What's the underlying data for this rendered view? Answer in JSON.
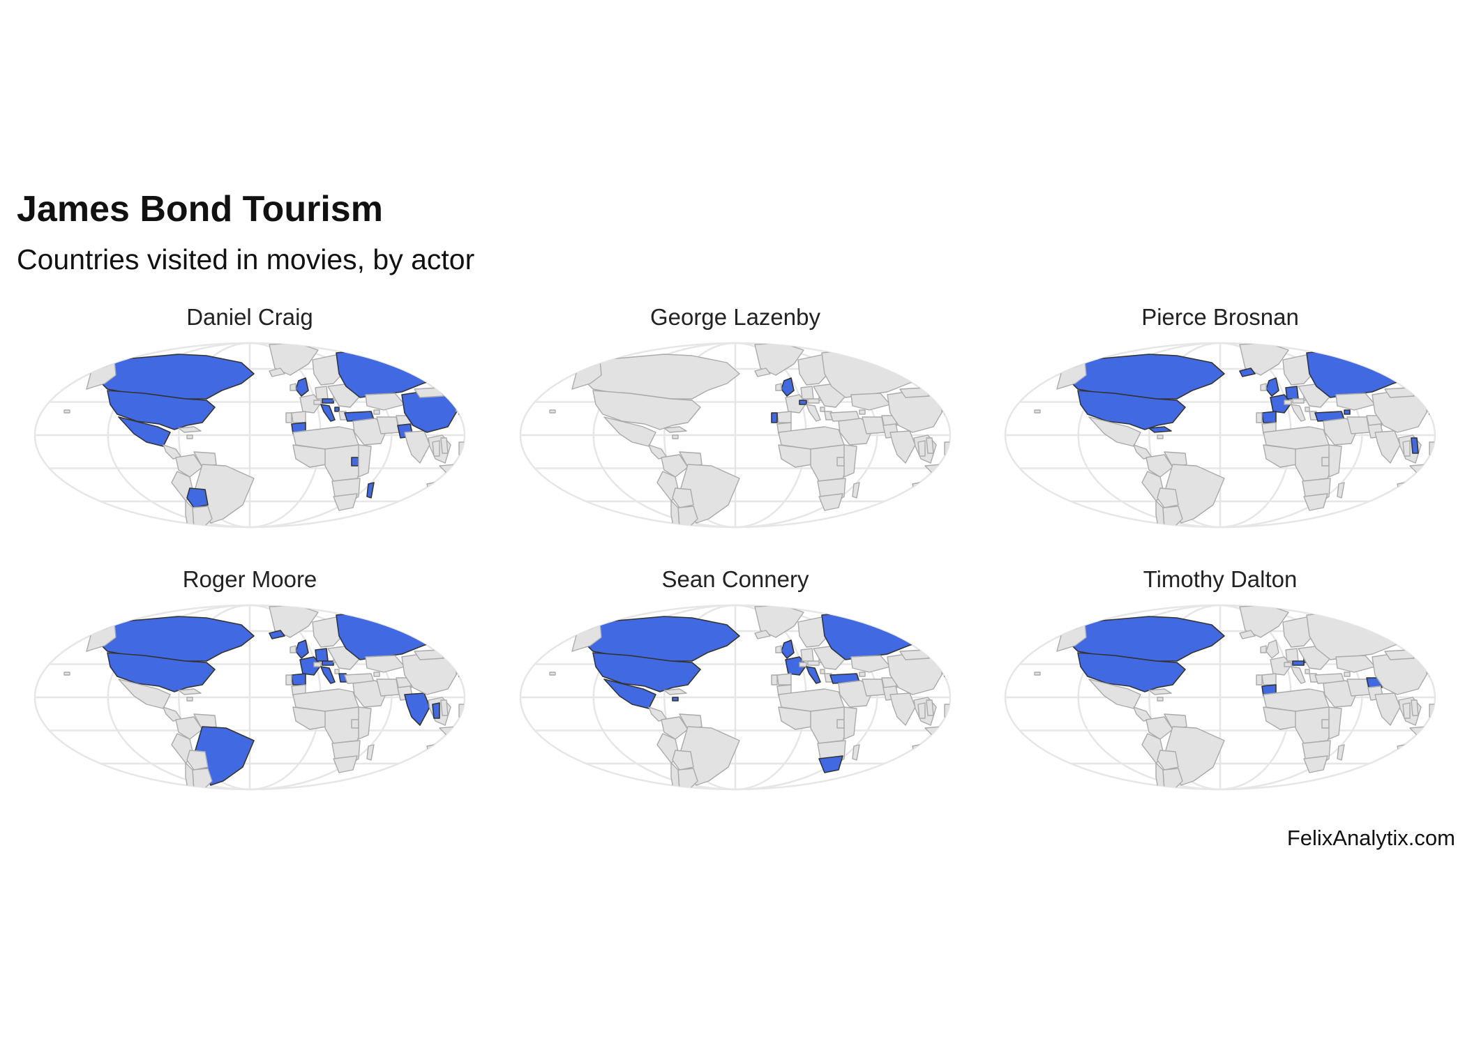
{
  "title": "James Bond Tourism",
  "subtitle": "Countries visited in movies, by actor",
  "credit": "FelixAnalytix.com",
  "colors": {
    "visited": "#4169e1",
    "not_visited": "#e2e2e2",
    "border": "#aaaaaa",
    "visited_border": "#333333",
    "graticule": "#e6e6e6"
  },
  "chart_data": {
    "type": "map",
    "facets": [
      {
        "actor": "Daniel Craig",
        "visited": [
          "United States",
          "Canada",
          "Mexico",
          "Bolivia",
          "United Kingdom",
          "Italy",
          "Austria",
          "Montenegro",
          "Russia",
          "China",
          "Turkey",
          "Morocco",
          "Uganda",
          "Madagascar",
          "Pakistan",
          "Japan"
        ]
      },
      {
        "actor": "George Lazenby",
        "visited": [
          "United Kingdom",
          "Portugal",
          "Switzerland"
        ]
      },
      {
        "actor": "Pierce Brosnan",
        "visited": [
          "United States",
          "Canada",
          "Cuba",
          "United Kingdom",
          "Spain",
          "France",
          "Germany",
          "Russia",
          "Azerbaijan",
          "Turkey",
          "Vietnam",
          "Japan",
          "Iceland"
        ]
      },
      {
        "actor": "Roger Moore",
        "visited": [
          "United States",
          "Canada",
          "Brazil",
          "United Kingdom",
          "France",
          "Italy",
          "Germany",
          "Greece",
          "Austria",
          "Spain",
          "Russia",
          "Egypt",
          "India",
          "Thailand",
          "Japan",
          "Iceland"
        ]
      },
      {
        "actor": "Sean Connery",
        "visited": [
          "United States",
          "Canada",
          "Mexico",
          "Jamaica",
          "United Kingdom",
          "France",
          "Italy",
          "Turkey",
          "Russia",
          "Japan",
          "Egypt",
          "South Africa"
        ]
      },
      {
        "actor": "Timothy Dalton",
        "visited": [
          "United States",
          "Canada",
          "Morocco",
          "Austria",
          "Afghanistan",
          "Slovakia"
        ]
      }
    ]
  }
}
